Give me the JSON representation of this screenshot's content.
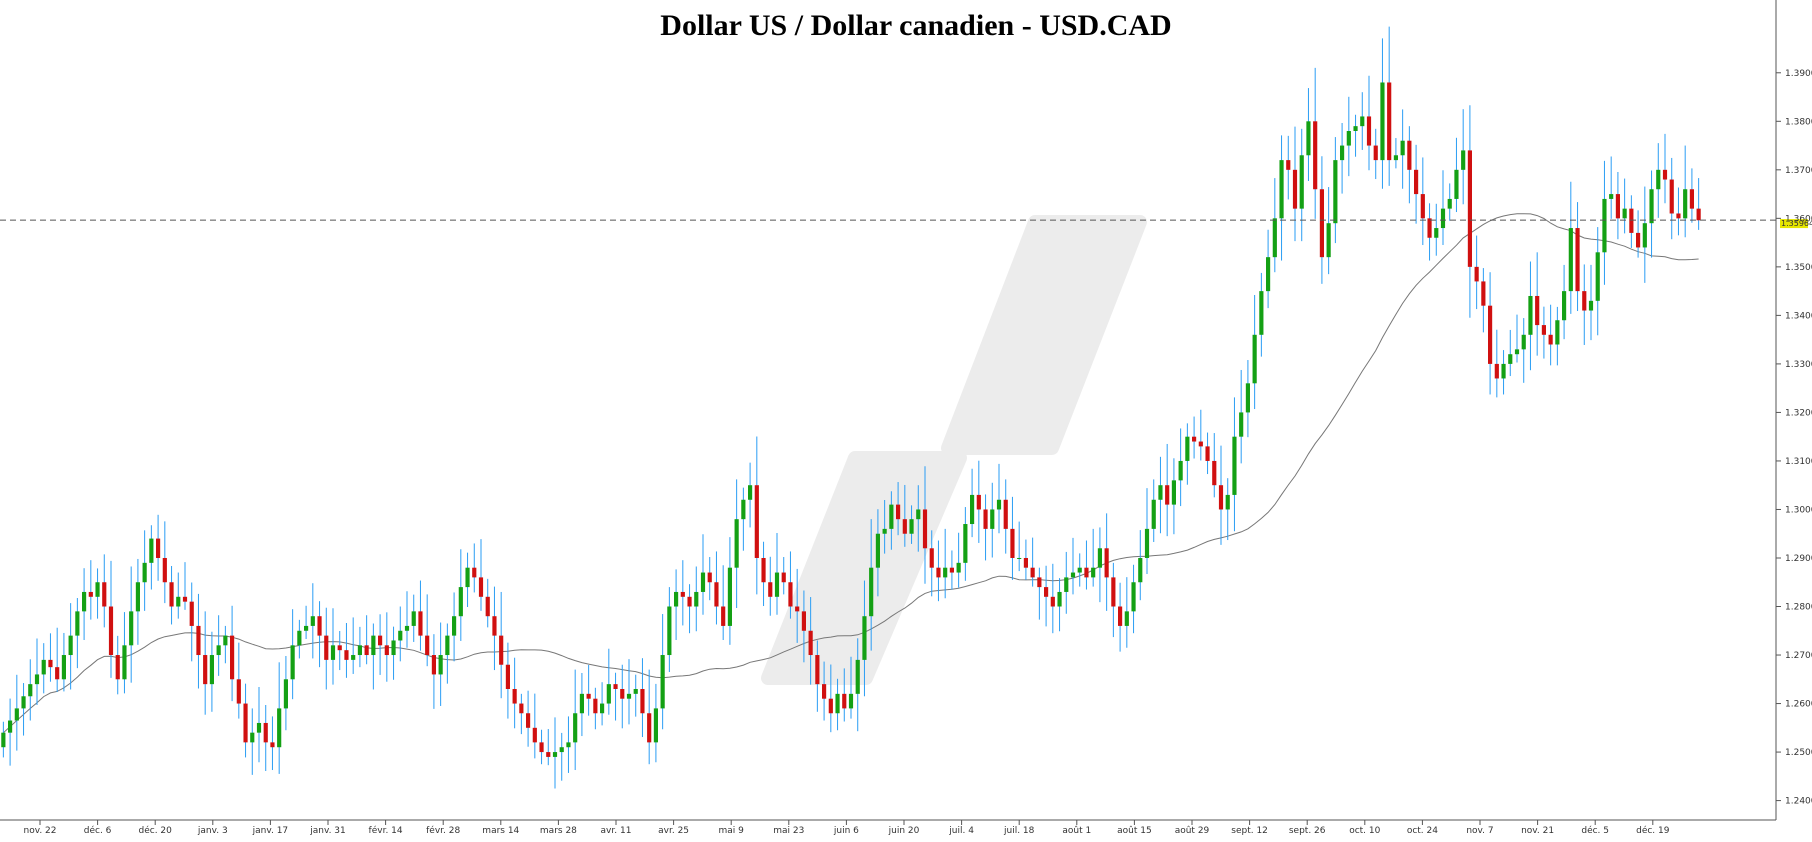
{
  "chart_data": {
    "type": "candlestick",
    "title": "Dollar US / Dollar canadien - USD.CAD",
    "xlabel": "",
    "ylabel": "",
    "ylim": [
      1.236,
      1.405
    ],
    "grid": false,
    "colors": {
      "up": "#14a014",
      "down": "#d01010",
      "wick": "#2a9df4",
      "ma": "#777777",
      "ref_line": "#555555",
      "price_tag": "#e6e600",
      "watermark": "#ececec"
    },
    "x_ticks": [
      "nov. 22",
      "déc. 6",
      "déc. 20",
      "janv. 3",
      "janv. 17",
      "janv. 31",
      "févr. 14",
      "févr. 28",
      "mars 14",
      "mars 28",
      "avr. 11",
      "avr. 25",
      "mai 9",
      "mai 23",
      "juin 6",
      "juin 20",
      "juil. 4",
      "juil. 18",
      "août 1",
      "août 15",
      "août 29",
      "sept. 12",
      "sept. 26",
      "oct. 10",
      "oct. 24",
      "nov. 7",
      "nov. 21",
      "déc. 5",
      "déc. 19"
    ],
    "y_ticks": [
      "1.24000",
      "1.25000",
      "1.26000",
      "1.27000",
      "1.28000",
      "1.29000",
      "1.30000",
      "1.31000",
      "1.32000",
      "1.33000",
      "1.34000",
      "1.35000",
      "1.36000",
      "1.37000",
      "1.38000",
      "1.39000"
    ],
    "reference_line": {
      "value": 1.35964,
      "label": "1.35964"
    },
    "closes": [
      1.254,
      1.2565,
      1.259,
      1.2615,
      1.264,
      1.266,
      1.269,
      1.2675,
      1.265,
      1.27,
      1.274,
      1.279,
      1.283,
      1.282,
      1.285,
      1.28,
      1.27,
      1.265,
      1.272,
      1.279,
      1.285,
      1.289,
      1.294,
      1.29,
      1.285,
      1.28,
      1.282,
      1.281,
      1.276,
      1.27,
      1.264,
      1.27,
      1.272,
      1.274,
      1.265,
      1.26,
      1.252,
      1.254,
      1.256,
      1.252,
      1.251,
      1.259,
      1.265,
      1.272,
      1.275,
      1.276,
      1.278,
      1.274,
      1.269,
      1.272,
      1.271,
      1.269,
      1.27,
      1.272,
      1.27,
      1.274,
      1.272,
      1.27,
      1.273,
      1.275,
      1.276,
      1.279,
      1.274,
      1.27,
      1.266,
      1.27,
      1.274,
      1.278,
      1.284,
      1.288,
      1.286,
      1.282,
      1.278,
      1.274,
      1.268,
      1.263,
      1.26,
      1.258,
      1.255,
      1.252,
      1.25,
      1.249,
      1.25,
      1.251,
      1.252,
      1.258,
      1.262,
      1.261,
      1.258,
      1.26,
      1.264,
      1.263,
      1.261,
      1.262,
      1.263,
      1.258,
      1.252,
      1.259,
      1.27,
      1.28,
      1.283,
      1.282,
      1.28,
      1.283,
      1.287,
      1.285,
      1.28,
      1.276,
      1.288,
      1.298,
      1.302,
      1.305,
      1.29,
      1.285,
      1.282,
      1.287,
      1.285,
      1.28,
      1.279,
      1.275,
      1.27,
      1.264,
      1.261,
      1.258,
      1.262,
      1.259,
      1.262,
      1.269,
      1.278,
      1.288,
      1.295,
      1.296,
      1.301,
      1.298,
      1.295,
      1.298,
      1.3,
      1.292,
      1.288,
      1.286,
      1.288,
      1.287,
      1.289,
      1.297,
      1.303,
      1.3,
      1.296,
      1.3,
      1.302,
      1.296,
      1.29,
      1.29,
      1.288,
      1.286,
      1.284,
      1.282,
      1.28,
      1.283,
      1.286,
      1.287,
      1.288,
      1.286,
      1.288,
      1.292,
      1.286,
      1.28,
      1.276,
      1.279,
      1.285,
      1.29,
      1.296,
      1.302,
      1.305,
      1.301,
      1.306,
      1.31,
      1.315,
      1.314,
      1.313,
      1.31,
      1.305,
      1.3,
      1.303,
      1.315,
      1.32,
      1.326,
      1.336,
      1.345,
      1.352,
      1.36,
      1.372,
      1.37,
      1.362,
      1.373,
      1.38,
      1.366,
      1.352,
      1.359,
      1.372,
      1.375,
      1.378,
      1.379,
      1.381,
      1.375,
      1.372,
      1.388,
      1.372,
      1.373,
      1.376,
      1.37,
      1.365,
      1.36,
      1.356,
      1.358,
      1.362,
      1.364,
      1.37,
      1.374,
      1.35,
      1.347,
      1.342,
      1.33,
      1.327,
      1.33,
      1.332,
      1.333,
      1.336,
      1.344,
      1.338,
      1.336,
      1.334,
      1.339,
      1.345,
      1.358,
      1.345,
      1.341,
      1.343,
      1.353,
      1.364,
      1.365,
      1.36,
      1.362,
      1.357,
      1.354,
      1.359,
      1.366,
      1.37,
      1.368,
      1.361,
      1.36,
      1.366,
      1.362,
      1.3596
    ]
  }
}
